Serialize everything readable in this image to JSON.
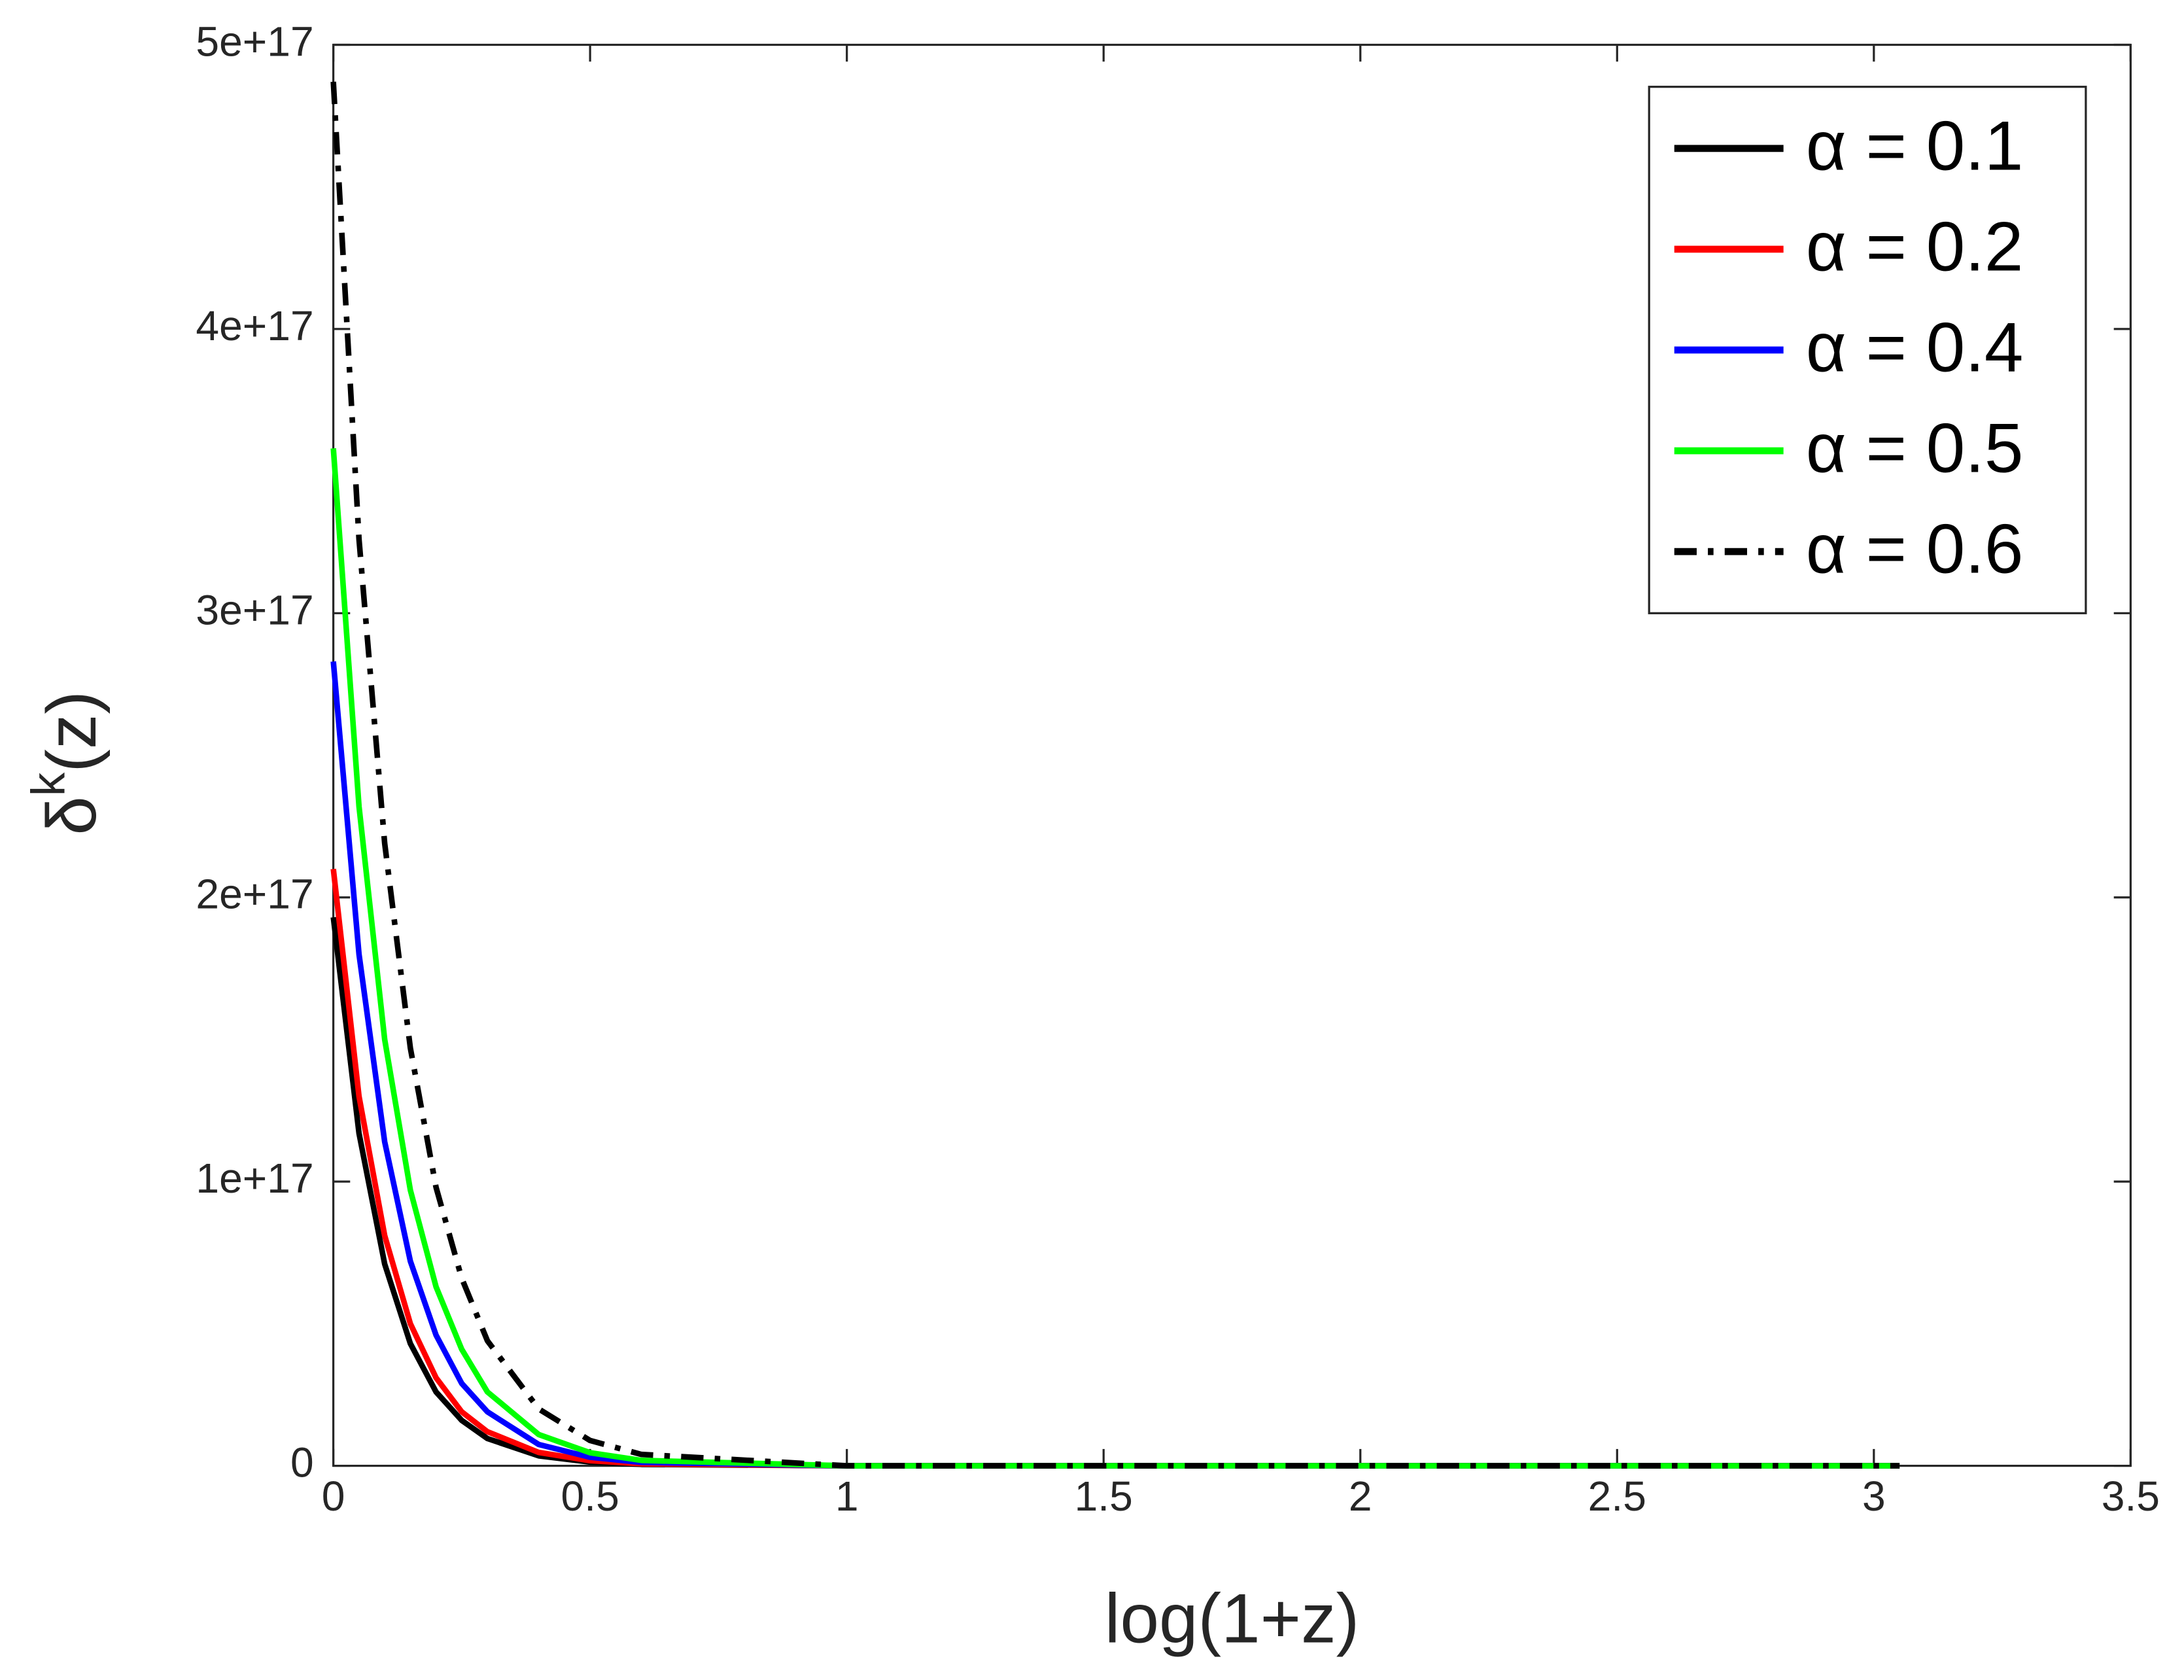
{
  "chart_data": {
    "type": "line",
    "xlabel": "log(1+z)",
    "ylabel": [
      "δ",
      "k",
      "(z)"
    ],
    "x": [
      0,
      0.05,
      0.1,
      0.15,
      0.2,
      0.25,
      0.3,
      0.4,
      0.5,
      0.6,
      1,
      2,
      3.05
    ],
    "series": [
      {
        "name": "α = 0.1",
        "color": "#000000",
        "dash": "solid",
        "values": [
          1.93e+17,
          1.17e+17,
          7.1e+16,
          4.3e+16,
          2.6e+16,
          1.6e+16,
          9600000000000000.0,
          3500000000000000.0,
          1300000000000000.0,
          500000000000000.0,
          0,
          0,
          0
        ]
      },
      {
        "name": "α = 0.2",
        "color": "#ff0000",
        "dash": "solid",
        "values": [
          2.1e+17,
          1.3e+17,
          8.1e+16,
          5e+16,
          3.1e+16,
          1.9e+16,
          1.2e+16,
          4700000000000000.0,
          1800000000000000.0,
          700000000000000.0,
          0,
          0,
          0
        ]
      },
      {
        "name": "α = 0.4",
        "color": "#0000ff",
        "dash": "solid",
        "values": [
          2.83e+17,
          1.8e+17,
          1.14e+17,
          7.2e+16,
          4.6e+16,
          2.9e+16,
          1.9e+16,
          7500000000000000.0,
          3000000000000000.0,
          1200000000000000.0,
          0,
          0,
          0
        ]
      },
      {
        "name": "α = 0.5",
        "color": "#00ff00",
        "dash": "solid",
        "values": [
          3.58e+17,
          2.32e+17,
          1.5e+17,
          9.7e+16,
          6.3e+16,
          4.1e+16,
          2.6e+16,
          1.1e+16,
          4600000000000000.0,
          1900000000000000.0,
          0,
          0,
          0
        ]
      },
      {
        "name": "α = 0.6",
        "color": "#000000",
        "dash": "dashdot",
        "values": [
          4.87e+17,
          3.26e+17,
          2.19e+17,
          1.47e+17,
          9.8e+16,
          6.6e+16,
          4.4e+16,
          2e+16,
          8900000000000000.0,
          4000000000000000.0,
          0,
          0,
          0
        ]
      }
    ],
    "xlim": [
      0,
      3.5
    ],
    "xticks": [
      0,
      0.5,
      1,
      1.5,
      2,
      2.5,
      3,
      3.5
    ],
    "ylim": [
      0,
      5e+17
    ],
    "yticks": [
      0,
      {
        "value": 1e+17,
        "label": "1e+17"
      },
      {
        "value": 2e+17,
        "label": "2e+17"
      },
      {
        "value": 3e+17,
        "label": "3e+17"
      },
      {
        "value": 4e+17,
        "label": "4e+17"
      },
      {
        "value": 5e+17,
        "label": "5e+17"
      }
    ],
    "grid": false,
    "legend": "upper-right"
  }
}
